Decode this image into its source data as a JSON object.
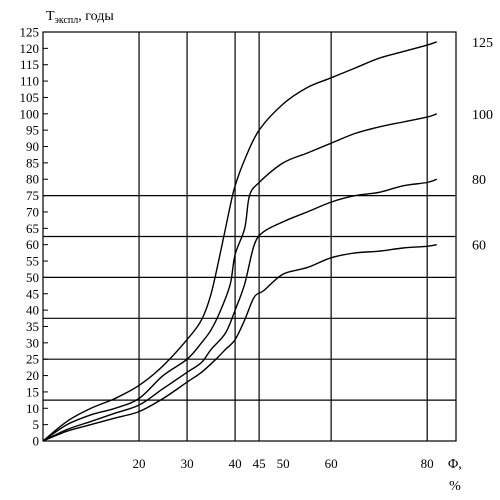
{
  "chart_data": {
    "type": "line",
    "ylabel_main": "T",
    "ylabel_sub": "экспл",
    "ylabel_rest": ", годы",
    "xlabel": "Φ,",
    "xunit": "%",
    "xlim": [
      0,
      86
    ],
    "ylim": [
      0,
      125
    ],
    "y_ticks": [
      0,
      5,
      10,
      15,
      20,
      25,
      30,
      35,
      40,
      45,
      50,
      55,
      60,
      65,
      70,
      75,
      80,
      85,
      90,
      95,
      100,
      105,
      110,
      115,
      120,
      125
    ],
    "x_tick_labels": [
      {
        "value": 20,
        "text": "20"
      },
      {
        "value": 30,
        "text": "30"
      },
      {
        "value": 40,
        "text": "40"
      },
      {
        "value": 45,
        "text": "45"
      },
      {
        "value": 50,
        "text": "50"
      },
      {
        "value": 60,
        "text": "60"
      },
      {
        "value": 80,
        "text": "80"
      }
    ],
    "v_gridlines": [
      20,
      30,
      40,
      45,
      60,
      80
    ],
    "h_gridlines": [
      12.5,
      25,
      37.5,
      50,
      62.5,
      75
    ],
    "series": [
      {
        "name": "125",
        "points": [
          [
            0,
            0
          ],
          [
            5,
            6
          ],
          [
            10,
            10
          ],
          [
            15,
            13
          ],
          [
            20,
            17
          ],
          [
            25,
            23
          ],
          [
            30,
            31
          ],
          [
            33,
            37
          ],
          [
            35,
            45
          ],
          [
            37,
            58
          ],
          [
            39,
            72
          ],
          [
            40,
            78
          ],
          [
            42,
            86
          ],
          [
            45,
            95
          ],
          [
            50,
            103
          ],
          [
            55,
            108
          ],
          [
            60,
            111
          ],
          [
            65,
            114
          ],
          [
            70,
            117
          ],
          [
            75,
            119
          ],
          [
            80,
            121
          ],
          [
            82,
            122
          ]
        ]
      },
      {
        "name": "100",
        "points": [
          [
            0,
            0
          ],
          [
            5,
            5
          ],
          [
            10,
            8
          ],
          [
            15,
            10
          ],
          [
            20,
            13
          ],
          [
            25,
            20
          ],
          [
            30,
            25
          ],
          [
            33,
            30
          ],
          [
            35,
            34
          ],
          [
            37,
            40
          ],
          [
            39,
            48
          ],
          [
            40,
            57
          ],
          [
            42,
            65
          ],
          [
            43,
            75
          ],
          [
            45,
            79
          ],
          [
            50,
            85
          ],
          [
            55,
            88
          ],
          [
            60,
            91
          ],
          [
            65,
            94
          ],
          [
            70,
            96
          ],
          [
            75,
            97.5
          ],
          [
            80,
            99
          ],
          [
            82,
            100
          ]
        ]
      },
      {
        "name": "80",
        "points": [
          [
            0,
            0
          ],
          [
            5,
            3.5
          ],
          [
            10,
            6
          ],
          [
            15,
            8.5
          ],
          [
            20,
            11
          ],
          [
            25,
            16
          ],
          [
            30,
            21
          ],
          [
            33,
            24
          ],
          [
            35,
            28
          ],
          [
            38,
            33
          ],
          [
            40,
            40
          ],
          [
            42,
            48
          ],
          [
            44,
            60
          ],
          [
            46,
            64
          ],
          [
            50,
            67
          ],
          [
            55,
            70
          ],
          [
            60,
            73
          ],
          [
            65,
            75
          ],
          [
            70,
            76
          ],
          [
            75,
            78
          ],
          [
            80,
            79
          ],
          [
            82,
            80
          ]
        ]
      },
      {
        "name": "60",
        "points": [
          [
            0,
            0
          ],
          [
            5,
            3
          ],
          [
            10,
            5
          ],
          [
            15,
            7
          ],
          [
            20,
            9
          ],
          [
            25,
            13
          ],
          [
            30,
            18
          ],
          [
            33,
            21
          ],
          [
            36,
            25
          ],
          [
            38,
            28
          ],
          [
            40,
            31
          ],
          [
            42,
            37
          ],
          [
            44,
            44
          ],
          [
            46,
            46
          ],
          [
            50,
            51
          ],
          [
            55,
            53
          ],
          [
            60,
            56
          ],
          [
            65,
            57.5
          ],
          [
            70,
            58
          ],
          [
            75,
            59
          ],
          [
            80,
            59.5
          ],
          [
            82,
            60
          ]
        ]
      }
    ]
  }
}
